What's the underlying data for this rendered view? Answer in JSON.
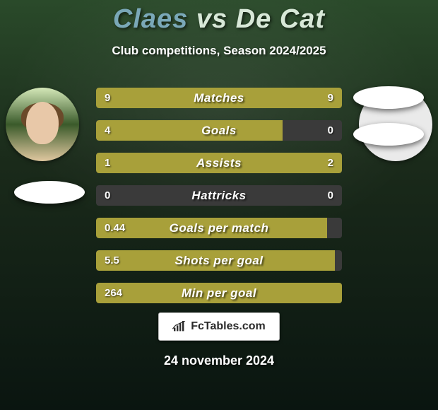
{
  "title": {
    "left": "Claes",
    "vs": "vs",
    "right": "De Cat",
    "left_color": "#7aa8b8",
    "right_color": "#d8e8d8"
  },
  "subtitle": "Club competitions, Season 2024/2025",
  "date": "24 november 2024",
  "logo_text": "FcTables.com",
  "bar_style": {
    "height": 29,
    "track_color": "#3a3a3a",
    "left_color": "#a8a03a",
    "right_color": "#a8a03a",
    "label_fontsize": 17,
    "value_fontsize": 15,
    "value_color": "#ffffff",
    "font_weight": 800
  },
  "player_left": {
    "name": "Claes"
  },
  "player_right": {
    "name": "De Cat"
  },
  "stats": [
    {
      "label": "Matches",
      "left_val": "9",
      "right_val": "9",
      "left_pct": 50,
      "right_pct": 50
    },
    {
      "label": "Goals",
      "left_val": "4",
      "right_val": "0",
      "left_pct": 76,
      "right_pct": 0
    },
    {
      "label": "Assists",
      "left_val": "1",
      "right_val": "2",
      "left_pct": 33,
      "right_pct": 67
    },
    {
      "label": "Hattricks",
      "left_val": "0",
      "right_val": "0",
      "left_pct": 0,
      "right_pct": 0
    },
    {
      "label": "Goals per match",
      "left_val": "0.44",
      "right_val": "",
      "left_pct": 94,
      "right_pct": 0
    },
    {
      "label": "Shots per goal",
      "left_val": "5.5",
      "right_val": "",
      "left_pct": 97,
      "right_pct": 0
    },
    {
      "label": "Min per goal",
      "left_val": "264",
      "right_val": "",
      "left_pct": 100,
      "right_pct": 0
    }
  ]
}
